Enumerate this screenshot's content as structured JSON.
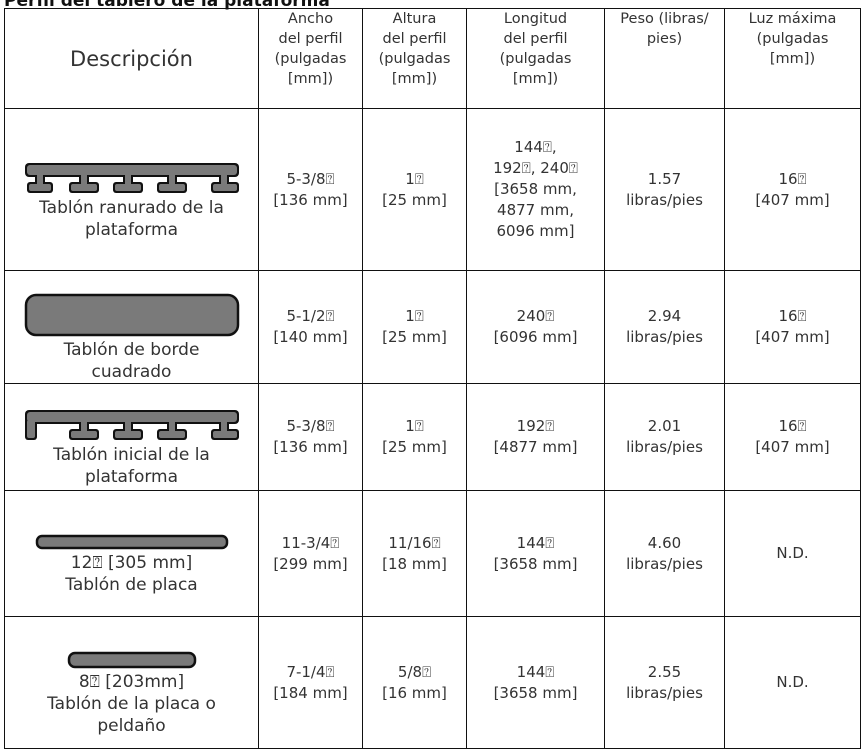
{
  "header": {
    "title": "Perfil del tablero de la plataforma"
  },
  "table": {
    "columns": [
      "Descripción",
      "Ancho\ndel perfil\n(pulgadas\n[mm])",
      "Altura\ndel perfil\n(pulgadas\n[mm])",
      "Longitud\ndel perfil\n(pulgadas\n[mm])",
      "Peso (libras/\npies)",
      "Luz máxima\n(pulgadas\n[mm])"
    ],
    "rows": [
      [
        "Tablón ranurado de la\nplataforma",
        "5-3/8⍰\n[136 mm]",
        "1⍰\n[25 mm]",
        "144⍰,\n192⍰, 240⍰\n[3658 mm,\n4877 mm,\n6096 mm]",
        "1.57\nlibras/pies",
        "16⍰\n[407 mm]"
      ],
      [
        "Tablón de borde\ncuadrado",
        "5-1/2⍰\n[140 mm]",
        "1⍰\n[25 mm]",
        "240⍰\n[6096 mm]",
        "2.94\nlibras/pies",
        "16⍰\n[407 mm]"
      ],
      [
        "Tablón inicial de la\nplataforma",
        "5-3/8⍰\n[136 mm]",
        "1⍰\n[25 mm]",
        "192⍰\n[4877 mm]",
        "2.01\nlibras/pies",
        "16⍰\n[407 mm]"
      ],
      [
        "12⍰ [305 mm]\nTablón de placa",
        "11-3/4⍰\n[299 mm]",
        "11/16⍰\n[18 mm]",
        "144⍰\n[3658 mm]",
        "4.60\nlibras/pies",
        "N.D."
      ],
      [
        "8⍰ [203mm]\nTablón de la placa o\npeldaño",
        "7-1/4⍰\n[184 mm]",
        "5/8⍰\n[16 mm]",
        "144⍰\n[3658 mm]",
        "2.55\nlibras/pies",
        "N.D."
      ]
    ]
  }
}
